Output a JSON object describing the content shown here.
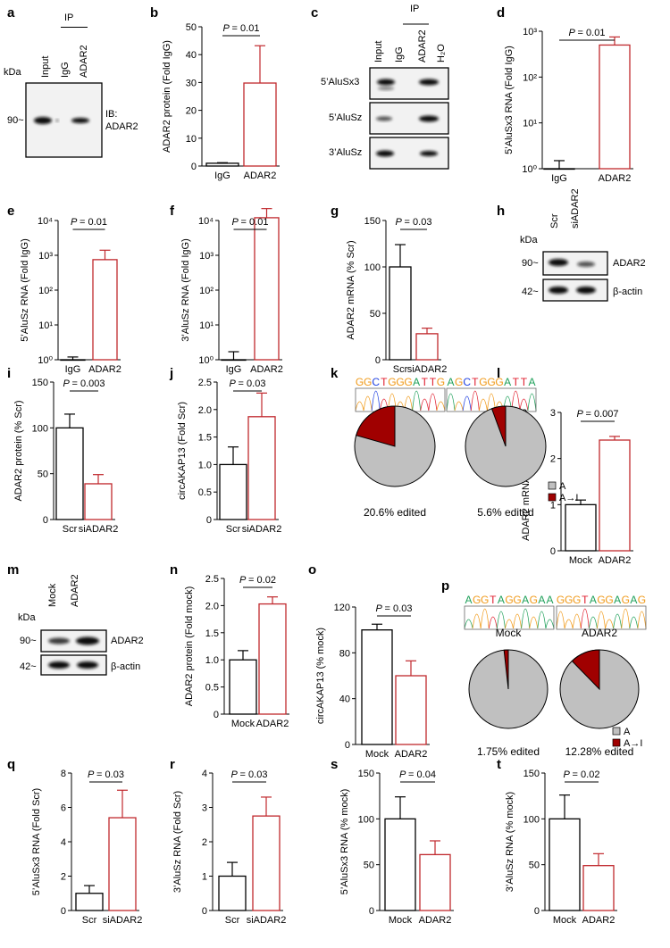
{
  "panel_letters": [
    "a",
    "b",
    "c",
    "d",
    "e",
    "f",
    "g",
    "h",
    "i",
    "j",
    "k",
    "l",
    "m",
    "n",
    "o",
    "p",
    "q",
    "r",
    "s",
    "t"
  ],
  "blot_a": {
    "ip": "IP",
    "kda": "kDa",
    "lanes": [
      "Input",
      "IgG",
      "ADAR2"
    ],
    "marker": "90~",
    "ib": "IB:",
    "ib_target": "ADAR2"
  },
  "blot_c": {
    "ip": "IP",
    "lanes": [
      "Input",
      "IgG",
      "ADAR2",
      "H₂O"
    ],
    "rows": [
      "5’AluSx3",
      "5’AluSz",
      "3’AluSz"
    ]
  },
  "blot_h": {
    "kda": "kDa",
    "lanes": [
      "Scr",
      "siADAR2"
    ],
    "markers": [
      "90~",
      "42~"
    ],
    "rows": [
      "ADAR2",
      "β-actin"
    ]
  },
  "blot_m": {
    "kda": "kDa",
    "lanes": [
      "Mock",
      "ADAR2"
    ],
    "markers": [
      "90~",
      "42~"
    ],
    "rows": [
      "ADAR2",
      "β-actin"
    ]
  },
  "colors": {
    "control": "#000000",
    "treatment": "#c0282d",
    "pie_a": "#c0c0c0",
    "pie_edit": "#a00000"
  },
  "chart_data": [
    {
      "id": "b",
      "type": "bar",
      "categories": [
        "IgG",
        "ADAR2"
      ],
      "values": [
        1,
        29.8
      ],
      "errors": [
        1.2,
        43.2
      ],
      "ylabel": "ADAR2 protein (Fold IgG)",
      "ylim": [
        0,
        50
      ],
      "ticks": [
        0,
        10,
        20,
        30,
        40,
        50
      ],
      "tick_labels": [
        "0",
        "10",
        "20",
        "30",
        "40",
        "50"
      ],
      "p_value": "P = 0.01"
    },
    {
      "id": "d",
      "type": "bar",
      "log": true,
      "categories": [
        "IgG",
        "ADAR2"
      ],
      "values": [
        1,
        500
      ],
      "errors": [
        1.5,
        750
      ],
      "ylabel": "5’AluSx3 RNA (Fold IgG)",
      "ylim": [
        1,
        1000
      ],
      "ticks": [
        1,
        10,
        100,
        1000
      ],
      "tick_labels": [
        "10⁰",
        "10¹",
        "10²",
        "10³"
      ],
      "p_value": "P = 0.01"
    },
    {
      "id": "e",
      "type": "bar",
      "log": true,
      "categories": [
        "IgG",
        "ADAR2"
      ],
      "values": [
        1,
        750
      ],
      "errors": [
        1.2,
        1400
      ],
      "ylabel": "5’AluSz RNA (Fold IgG)",
      "ylim": [
        1,
        10000
      ],
      "ticks": [
        1,
        10,
        100,
        1000,
        10000
      ],
      "tick_labels": [
        "10⁰",
        "10¹",
        "10²",
        "10³",
        "10⁴"
      ],
      "p_value": "P = 0.01"
    },
    {
      "id": "f",
      "type": "bar",
      "log": true,
      "categories": [
        "IgG",
        "ADAR2"
      ],
      "values": [
        1,
        12000
      ],
      "errors": [
        1.7,
        22000
      ],
      "ylabel": "3’AluSz RNA (Fold IgG)",
      "ylim": [
        1,
        100000
      ],
      "ticks": [
        1,
        10,
        100,
        1000,
        10000
      ],
      "tick_labels": [
        "10⁰",
        "10¹",
        "10²",
        "10³",
        "10⁴"
      ],
      "p_value": "P = 0.01"
    },
    {
      "id": "g",
      "type": "bar",
      "categories": [
        "Scr",
        "siADAR2"
      ],
      "values": [
        100,
        28
      ],
      "errors": [
        124,
        34
      ],
      "ylabel": "ADAR2 mRNA (% Scr)",
      "ylim": [
        0,
        150
      ],
      "ticks": [
        0,
        50,
        100,
        150
      ],
      "tick_labels": [
        "0",
        "50",
        "100",
        "150"
      ],
      "p_value": "P = 0.03"
    },
    {
      "id": "i",
      "type": "bar",
      "categories": [
        "Scr",
        "siADAR2"
      ],
      "values": [
        100,
        39
      ],
      "errors": [
        115,
        49
      ],
      "ylabel": "ADAR2 protein (% Scr)",
      "ylim": [
        0,
        150
      ],
      "ticks": [
        0,
        50,
        100,
        150
      ],
      "tick_labels": [
        "0",
        "50",
        "100",
        "150"
      ],
      "p_value": "P =  0.003"
    },
    {
      "id": "j",
      "type": "bar",
      "categories": [
        "Scr",
        "siADAR2"
      ],
      "values": [
        1.0,
        1.87
      ],
      "errors": [
        1.32,
        2.3
      ],
      "ylabel": "circAKAP13 (Fold Scr)",
      "ylim": [
        0,
        2.5
      ],
      "ticks": [
        0,
        0.5,
        1.0,
        1.5,
        2.0,
        2.5
      ],
      "tick_labels": [
        "0",
        "0.5",
        "1.0",
        "1.5",
        "2.0",
        "2.5"
      ],
      "p_value": "P = 0.03"
    },
    {
      "id": "l",
      "type": "bar",
      "categories": [
        "Mock",
        "ADAR2"
      ],
      "values": [
        1.0,
        2.4
      ],
      "errors": [
        1.1,
        2.48
      ],
      "ylabel": "ADAR2 mRNA (Fold mock)",
      "ylim": [
        0,
        3
      ],
      "ticks": [
        0,
        1,
        2,
        3
      ],
      "tick_labels": [
        "0",
        "1",
        "2",
        "3"
      ],
      "p_value": "P = 0.007"
    },
    {
      "id": "n",
      "type": "bar",
      "categories": [
        "Mock",
        "ADAR2"
      ],
      "values": [
        1.0,
        2.03
      ],
      "errors": [
        1.17,
        2.16
      ],
      "ylabel": "ADAR2 protein (Fold mock)",
      "ylim": [
        0,
        2.5
      ],
      "ticks": [
        0,
        0.5,
        1.0,
        1.5,
        2.0,
        2.5
      ],
      "tick_labels": [
        "0",
        "0.5",
        "1.0",
        "1.5",
        "2.0",
        "2.5"
      ],
      "p_value": "P = 0.02"
    },
    {
      "id": "o",
      "type": "bar",
      "categories": [
        "Mock",
        "ADAR2"
      ],
      "values": [
        100,
        60
      ],
      "errors": [
        105,
        73
      ],
      "ylabel": "circAKAP13 (% mock)",
      "ylim": [
        0,
        120
      ],
      "ticks": [
        0,
        40,
        80,
        120
      ],
      "tick_labels": [
        "0",
        "40",
        "80",
        "120"
      ],
      "p_value": "P = 0.03"
    },
    {
      "id": "q",
      "type": "bar",
      "categories": [
        "Scr",
        "siADAR2"
      ],
      "values": [
        1.0,
        5.4
      ],
      "errors": [
        1.45,
        7.0
      ],
      "ylabel": "5’AluSx3 RNA (Fold Scr)",
      "ylim": [
        0,
        8
      ],
      "ticks": [
        0,
        2,
        4,
        6,
        8
      ],
      "tick_labels": [
        "0",
        "2",
        "4",
        "6",
        "8"
      ],
      "p_value": "P = 0.03"
    },
    {
      "id": "r",
      "type": "bar",
      "categories": [
        "Scr",
        "siADAR2"
      ],
      "values": [
        1.0,
        2.75
      ],
      "errors": [
        1.4,
        3.3
      ],
      "ylabel": "3’AluSz RNA (Fold Scr)",
      "ylim": [
        0,
        4
      ],
      "ticks": [
        0,
        1,
        2,
        3,
        4
      ],
      "tick_labels": [
        "0",
        "1",
        "2",
        "3",
        "4"
      ],
      "p_value": "P = 0.03"
    },
    {
      "id": "s",
      "type": "bar",
      "categories": [
        "Mock",
        "ADAR2"
      ],
      "values": [
        100,
        61
      ],
      "errors": [
        124,
        76
      ],
      "ylabel": "5’AluSx3 RNA (% mock)",
      "ylim": [
        0,
        150
      ],
      "ticks": [
        0,
        50,
        100,
        150
      ],
      "tick_labels": [
        "0",
        "50",
        "100",
        "150"
      ],
      "p_value": "P = 0.04"
    },
    {
      "id": "t",
      "type": "bar",
      "categories": [
        "Mock",
        "ADAR2"
      ],
      "values": [
        100,
        49
      ],
      "errors": [
        126,
        62
      ],
      "ylabel": "3’AluSz RNA (% mock)",
      "ylim": [
        0,
        150
      ],
      "ticks": [
        0,
        50,
        100,
        150
      ],
      "tick_labels": [
        "0",
        "50",
        "100",
        "150"
      ],
      "p_value": "P = 0.02"
    },
    {
      "id": "k",
      "type": "pie",
      "groups": [
        "Scr",
        "siADAR2"
      ],
      "sequences": [
        "GGCTGGGATTG",
        "AGCTGGGATTA"
      ],
      "edited_percent": [
        20.6,
        5.6
      ],
      "captions": [
        "20.6% edited",
        "5.6% edited"
      ],
      "legend": [
        "A",
        "A→I"
      ]
    },
    {
      "id": "p",
      "type": "pie",
      "groups": [
        "Mock",
        "ADAR2"
      ],
      "sequences": [
        "AGGTAGGAGAA",
        "GGGTAGGAGAG"
      ],
      "edited_percent": [
        1.75,
        12.28
      ],
      "captions": [
        "1.75% edited",
        "12.28% edited"
      ],
      "legend": [
        "A",
        "A→I"
      ]
    }
  ]
}
